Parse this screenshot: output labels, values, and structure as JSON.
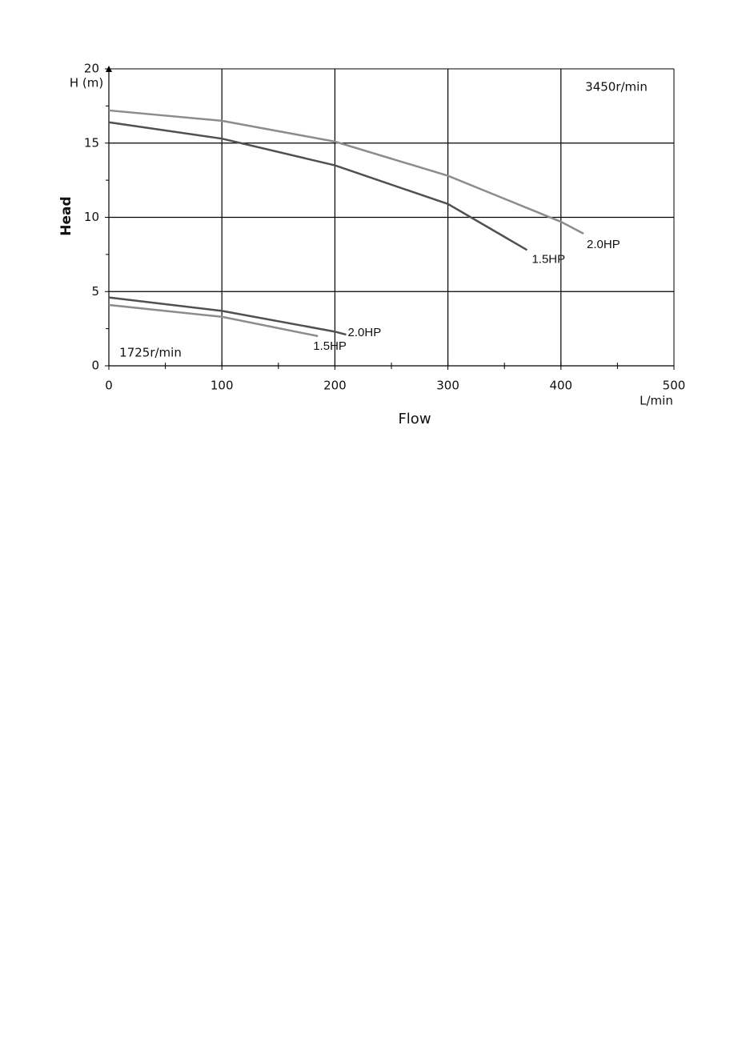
{
  "chart_data": {
    "type": "line",
    "x_label": "Flow",
    "y_label": "Head",
    "x_unit": "L/min",
    "y_unit": "H (m)",
    "annotations": [
      "3450r/min",
      "1725r/min"
    ],
    "xlim": [
      0,
      500
    ],
    "xticks": [
      0,
      100,
      200,
      300,
      400,
      500
    ],
    "ylim": [
      0,
      20
    ],
    "yticks": [
      0,
      5,
      10,
      15,
      20
    ],
    "grid": true,
    "series": [
      {
        "name": "2.0HP",
        "color": "#8c8c8c",
        "x": [
          0,
          100,
          200,
          300,
          400,
          420
        ],
        "values": [
          17.2,
          16.5,
          15.1,
          12.8,
          9.7,
          8.9
        ]
      },
      {
        "name": "1.5HP",
        "color": "#505050",
        "x": [
          0,
          100,
          200,
          300,
          370
        ],
        "values": [
          16.4,
          15.3,
          13.5,
          10.9,
          7.8
        ]
      },
      {
        "name": "2.0HP",
        "color": "#505050",
        "x": [
          0,
          100,
          200,
          210
        ],
        "values": [
          4.6,
          3.7,
          2.3,
          2.1
        ]
      },
      {
        "name": "1.5HP",
        "color": "#8c8c8c",
        "x": [
          0,
          100,
          185
        ],
        "values": [
          4.1,
          3.3,
          2.0
        ]
      }
    ]
  }
}
